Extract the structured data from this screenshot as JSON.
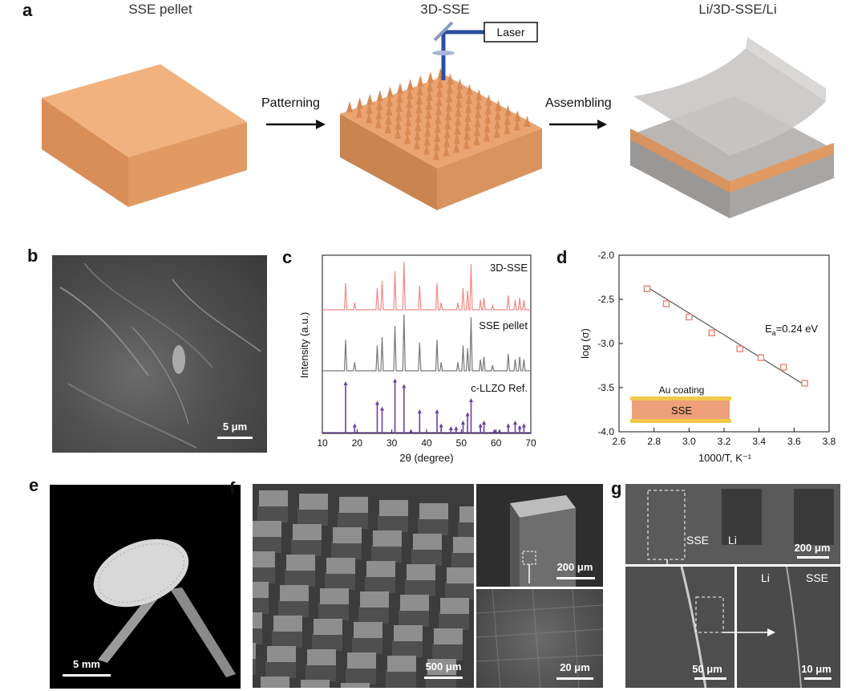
{
  "panels": {
    "a": {
      "letter": "a",
      "titles": [
        "SSE pellet",
        "3D-SSE",
        "Li/3D-SSE/Li"
      ],
      "laser": "Laser",
      "steps": [
        "Patterning",
        "Assembling"
      ]
    },
    "b": {
      "letter": "b",
      "scalebar": "5 μm"
    },
    "c": {
      "letter": "c"
    },
    "d": {
      "letter": "d"
    },
    "e": {
      "letter": "e",
      "scalebar": "5 mm"
    },
    "f": {
      "letter": "f",
      "scalebar_main": "500 μm",
      "scalebar_top": "200 μm",
      "scalebar_bottom": "20 μm"
    },
    "g": {
      "letter": "g",
      "scalebar_top": "200 μm",
      "scalebar_bl": "50 μm",
      "scalebar_br": "10 μm",
      "label_sse": "SSE",
      "label_li": "Li",
      "label_li2": "Li",
      "label_sse2": "SSE"
    }
  },
  "colors": {
    "sse": "#E9A472",
    "sse_dark": "#C9844F",
    "xrd_top": "#F08A86",
    "xrd_mid": "#777777",
    "xrd_ref": "#6B3FA0",
    "marker": "#E58673"
  },
  "chart_data": [
    {
      "type": "line",
      "xlabel": "2θ (degree)",
      "ylabel": "Intensity (a.u.)",
      "xlim": [
        10,
        70
      ],
      "xticks": [
        10,
        20,
        30,
        40,
        50,
        60,
        70
      ],
      "series": [
        {
          "name": "3D-SSE",
          "peaks": [
            [
              16.7,
              0.55
            ],
            [
              19.3,
              0.15
            ],
            [
              25.8,
              0.45
            ],
            [
              27.2,
              0.6
            ],
            [
              30.9,
              0.8
            ],
            [
              33.5,
              1.0
            ],
            [
              38.0,
              0.5
            ],
            [
              43.0,
              0.55
            ],
            [
              44.2,
              0.15
            ],
            [
              49.0,
              0.15
            ],
            [
              50.5,
              0.45
            ],
            [
              51.8,
              0.4
            ],
            [
              52.8,
              0.95
            ],
            [
              55.5,
              0.2
            ],
            [
              56.5,
              0.25
            ],
            [
              59.0,
              0.1
            ],
            [
              63.5,
              0.3
            ],
            [
              65.5,
              0.2
            ],
            [
              66.8,
              0.25
            ],
            [
              68.0,
              0.2
            ]
          ]
        },
        {
          "name": "SSE pellet",
          "peaks": [
            [
              16.7,
              0.55
            ],
            [
              19.3,
              0.15
            ],
            [
              25.8,
              0.45
            ],
            [
              27.2,
              0.6
            ],
            [
              30.9,
              0.8
            ],
            [
              33.5,
              1.0
            ],
            [
              38.0,
              0.5
            ],
            [
              43.0,
              0.55
            ],
            [
              44.2,
              0.15
            ],
            [
              49.0,
              0.15
            ],
            [
              50.5,
              0.45
            ],
            [
              51.8,
              0.4
            ],
            [
              52.8,
              0.95
            ],
            [
              55.5,
              0.2
            ],
            [
              56.5,
              0.25
            ],
            [
              59.0,
              0.1
            ],
            [
              63.5,
              0.3
            ],
            [
              65.5,
              0.2
            ],
            [
              66.8,
              0.25
            ],
            [
              68.0,
              0.2
            ]
          ]
        },
        {
          "name": "c-LLZO Ref.",
          "peaks": [
            [
              16.7,
              0.9
            ],
            [
              19.3,
              0.15
            ],
            [
              25.8,
              0.55
            ],
            [
              27.2,
              0.45
            ],
            [
              30.9,
              0.95
            ],
            [
              33.5,
              0.85
            ],
            [
              35.5,
              0.05
            ],
            [
              38.0,
              0.4
            ],
            [
              43.0,
              0.4
            ],
            [
              44.2,
              0.15
            ],
            [
              47.0,
              0.1
            ],
            [
              48.5,
              0.1
            ],
            [
              50.5,
              0.2
            ],
            [
              51.8,
              0.35
            ],
            [
              52.8,
              0.6
            ],
            [
              55.5,
              0.15
            ],
            [
              56.5,
              0.2
            ],
            [
              59.5,
              0.05
            ],
            [
              61.0,
              0.05
            ],
            [
              63.5,
              0.15
            ],
            [
              65.5,
              0.2
            ],
            [
              66.8,
              0.12
            ],
            [
              68.0,
              0.15
            ]
          ]
        }
      ]
    },
    {
      "type": "scatter",
      "xlabel": "1000/T, K⁻¹",
      "ylabel": "log (σ)",
      "xlim": [
        2.6,
        3.8
      ],
      "ylim": [
        -4.0,
        -2.0
      ],
      "xticks": [
        2.6,
        2.8,
        3.0,
        3.2,
        3.4,
        3.6,
        3.8
      ],
      "yticks": [
        -2.0,
        -2.5,
        -3.0,
        -3.5,
        -4.0
      ],
      "x": [
        2.76,
        2.87,
        3.0,
        3.13,
        3.29,
        3.41,
        3.54,
        3.66
      ],
      "y": [
        -2.38,
        -2.55,
        -2.7,
        -2.88,
        -3.06,
        -3.16,
        -3.27,
        -3.45
      ],
      "fit": [
        [
          2.76,
          -2.36
        ],
        [
          3.66,
          -3.47
        ]
      ],
      "annotation": {
        "base": "E",
        "sub": "a",
        "rest": "=0.24 eV"
      },
      "inset": {
        "coating": "Au coating",
        "core": "SSE"
      }
    }
  ]
}
